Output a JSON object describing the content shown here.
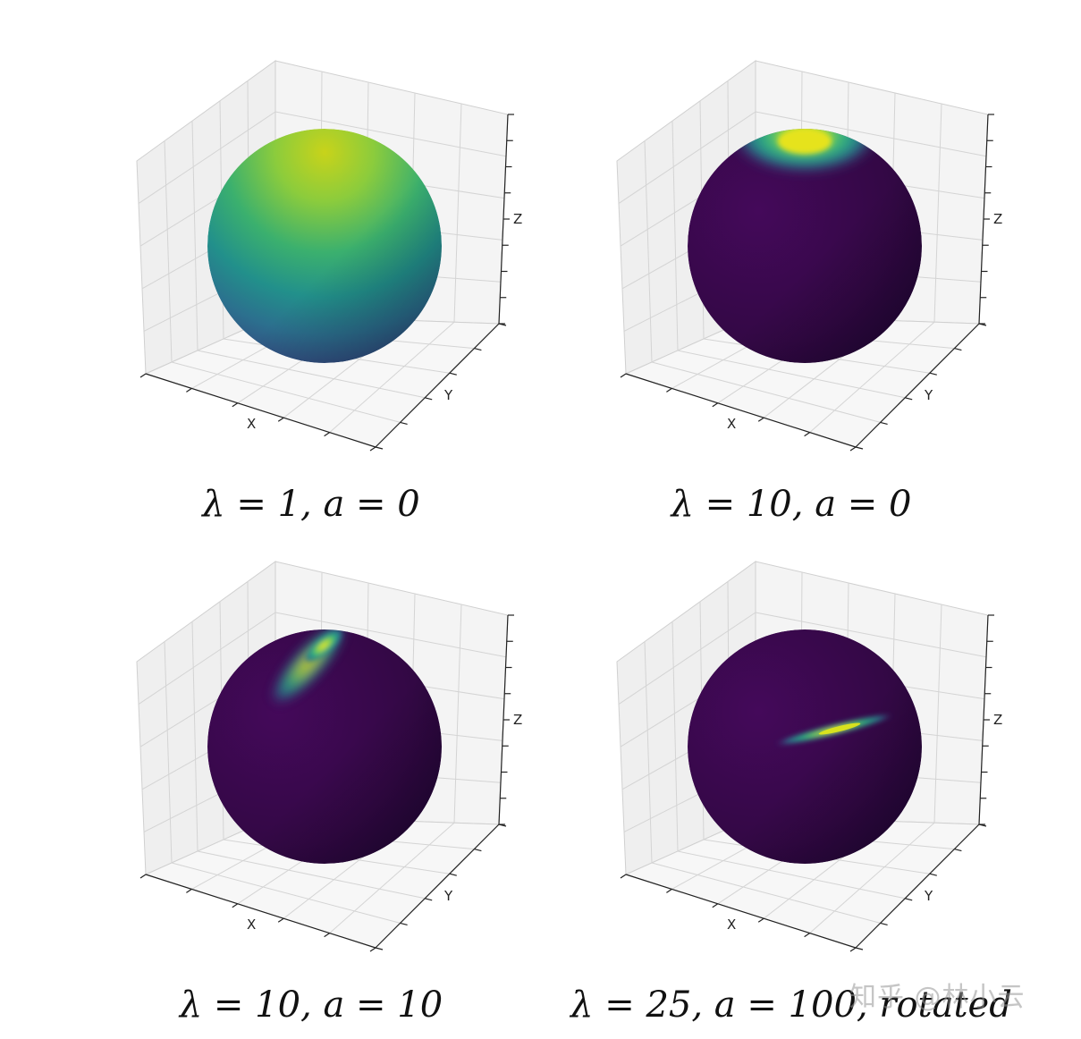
{
  "chart_data": [
    {
      "type": "surface",
      "caption": "λ = 1, a = 0",
      "xlabel": "X",
      "ylabel": "Y",
      "zlabel": "Z",
      "colormap": "viridis",
      "hotspot": {
        "shape": "broad",
        "location": "upper-front",
        "spread": "wide"
      }
    },
    {
      "type": "surface",
      "caption": "λ = 10, a = 0",
      "xlabel": "X",
      "ylabel": "Y",
      "zlabel": "Z",
      "colormap": "viridis",
      "hotspot": {
        "shape": "round",
        "location": "top",
        "spread": "medium"
      }
    },
    {
      "type": "surface",
      "caption": "λ = 10, a = 10",
      "xlabel": "X",
      "ylabel": "Y",
      "zlabel": "Z",
      "colormap": "viridis",
      "hotspot": {
        "shape": "elongated",
        "location": "top",
        "spread": "narrow"
      }
    },
    {
      "type": "surface",
      "caption": "λ = 25, a = 100, rotated",
      "xlabel": "X",
      "ylabel": "Y",
      "zlabel": "Z",
      "colormap": "viridis",
      "hotspot": {
        "shape": "thin-streak",
        "location": "center",
        "spread": "very-narrow"
      }
    }
  ],
  "watermark": "知乎 @林小云",
  "colors": {
    "viridis_dark": "#2b0f3e",
    "viridis_mid": "#21908c",
    "viridis_bright": "#fde725",
    "pane_left": "#efefef",
    "pane_right": "#f4f4f4",
    "pane_floor": "#f7f7f7"
  }
}
